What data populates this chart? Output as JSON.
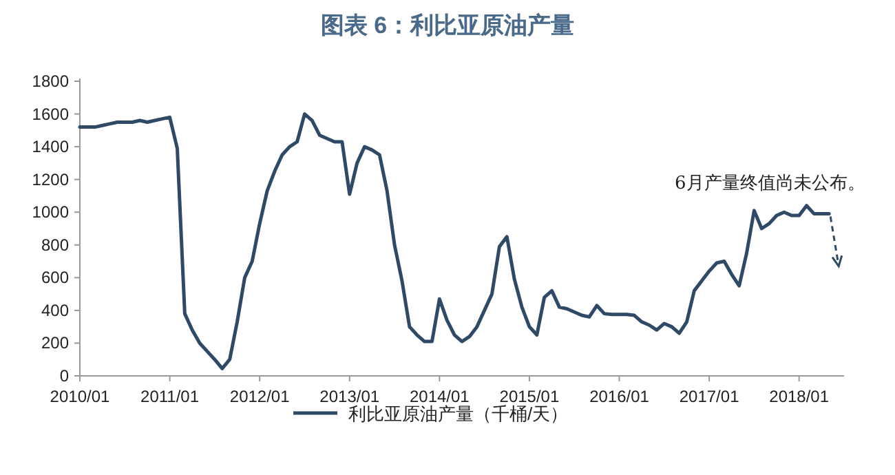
{
  "chart_data": {
    "type": "line",
    "title": "图表 6：利比亚原油产量",
    "annotations": [
      "6月产量终值尚未公布。"
    ],
    "legend": "bottom",
    "grid": false,
    "xlim": [
      "2010-01",
      "2018-07"
    ],
    "ylim": [
      0,
      1800
    ],
    "xticks": [
      {
        "value": "2010-01",
        "label": "2010/01"
      },
      {
        "value": "2011-01",
        "label": "2011/01"
      },
      {
        "value": "2012-01",
        "label": "2012/01"
      },
      {
        "value": "2013-01",
        "label": "2013/01"
      },
      {
        "value": "2014-01",
        "label": "2014/01"
      },
      {
        "value": "2015-01",
        "label": "2015/01"
      },
      {
        "value": "2016-01",
        "label": "2016/01"
      },
      {
        "value": "2017-01",
        "label": "2017/01"
      },
      {
        "value": "2018-01",
        "label": "2018/01"
      }
    ],
    "yticks": [
      0,
      200,
      400,
      600,
      800,
      1000,
      1200,
      1400,
      1600,
      1800
    ],
    "series": [
      {
        "name": "利比亚原油产量（千桶/天）",
        "color": "#2f4a66",
        "line_style": "solid",
        "x": [
          "2010-01",
          "2010-02",
          "2010-03",
          "2010-04",
          "2010-05",
          "2010-06",
          "2010-07",
          "2010-08",
          "2010-09",
          "2010-10",
          "2010-11",
          "2010-12",
          "2011-01",
          "2011-02",
          "2011-03",
          "2011-04",
          "2011-05",
          "2011-06",
          "2011-07",
          "2011-08",
          "2011-09",
          "2011-10",
          "2011-11",
          "2011-12",
          "2012-01",
          "2012-02",
          "2012-03",
          "2012-04",
          "2012-05",
          "2012-06",
          "2012-07",
          "2012-08",
          "2012-09",
          "2012-10",
          "2012-11",
          "2012-12",
          "2013-01",
          "2013-02",
          "2013-03",
          "2013-04",
          "2013-05",
          "2013-06",
          "2013-07",
          "2013-08",
          "2013-09",
          "2013-10",
          "2013-11",
          "2013-12",
          "2014-01",
          "2014-02",
          "2014-03",
          "2014-04",
          "2014-05",
          "2014-06",
          "2014-07",
          "2014-08",
          "2014-09",
          "2014-10",
          "2014-11",
          "2014-12",
          "2015-01",
          "2015-02",
          "2015-03",
          "2015-04",
          "2015-05",
          "2015-06",
          "2015-07",
          "2015-08",
          "2015-09",
          "2015-10",
          "2015-11",
          "2015-12",
          "2016-01",
          "2016-02",
          "2016-03",
          "2016-04",
          "2016-05",
          "2016-06",
          "2016-07",
          "2016-08",
          "2016-09",
          "2016-10",
          "2016-11",
          "2016-12",
          "2017-01",
          "2017-02",
          "2017-03",
          "2017-04",
          "2017-05",
          "2017-06",
          "2017-07",
          "2017-08",
          "2017-09",
          "2017-10",
          "2017-11",
          "2017-12",
          "2018-01",
          "2018-02",
          "2018-03",
          "2018-04",
          "2018-05"
        ],
        "values": [
          1520,
          1520,
          1520,
          1530,
          1540,
          1550,
          1550,
          1550,
          1560,
          1550,
          1560,
          1570,
          1580,
          1390,
          380,
          280,
          200,
          150,
          100,
          45,
          100,
          330,
          600,
          700,
          930,
          1130,
          1250,
          1350,
          1400,
          1430,
          1600,
          1560,
          1470,
          1450,
          1430,
          1430,
          1110,
          1300,
          1400,
          1380,
          1350,
          1130,
          800,
          580,
          300,
          250,
          210,
          210,
          470,
          340,
          250,
          210,
          240,
          300,
          400,
          500,
          790,
          850,
          590,
          420,
          300,
          250,
          480,
          520,
          420,
          410,
          390,
          370,
          360,
          430,
          380,
          375,
          375,
          375,
          370,
          330,
          310,
          280,
          320,
          300,
          260,
          330,
          520,
          580,
          640,
          690,
          700,
          620,
          550,
          750,
          1010,
          900,
          930,
          980,
          1000,
          980,
          980,
          1040,
          990,
          990,
          990
        ]
      }
    ]
  }
}
